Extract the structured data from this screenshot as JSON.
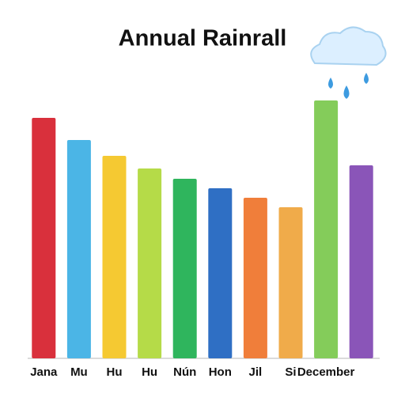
{
  "chart_data": {
    "type": "bar",
    "title": "Annual Rainrall",
    "categories": [
      "Jana",
      "Mu",
      "Hu",
      "Hu",
      "Nún",
      "Hon",
      "Jil",
      "Si",
      "December",
      null
    ],
    "values": [
      304,
      276,
      256,
      240,
      227,
      215,
      203,
      191,
      326,
      244
    ],
    "colors": [
      "#d9303c",
      "#4bb5e6",
      "#f5c932",
      "#b5db48",
      "#2fb55d",
      "#2f6fc4",
      "#f07e3a",
      "#f0ab4a",
      "#84cc5a",
      "#8a55b8"
    ]
  }
}
